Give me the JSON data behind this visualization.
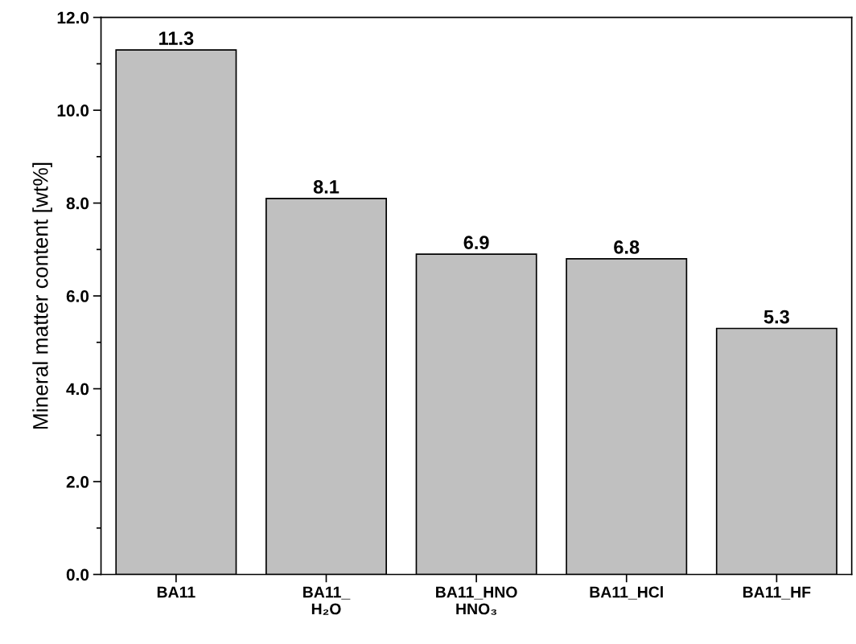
{
  "chart_data": {
    "type": "bar",
    "ylabel": "Mineral matter content [wt%]",
    "categories": [
      "BA11",
      "BA11_\nH₂O",
      "BA11_HNO\nHNO₃",
      "BA11_HCl",
      "BA11_HF"
    ],
    "values": [
      11.3,
      8.1,
      6.9,
      6.8,
      5.3
    ],
    "color": "#c0c0c0",
    "data_labels": true,
    "ylim": [
      0,
      12
    ],
    "yticks": [
      {
        "value": 0,
        "label": "0.0"
      },
      {
        "value": 2,
        "label": "2.0"
      },
      {
        "value": 4,
        "label": "4.0"
      },
      {
        "value": 6,
        "label": "6.0"
      },
      {
        "value": 8,
        "label": "8.0"
      },
      {
        "value": 10,
        "label": "10.0"
      },
      {
        "value": 12,
        "label": "12.0"
      }
    ],
    "grid": false,
    "legend": false
  }
}
